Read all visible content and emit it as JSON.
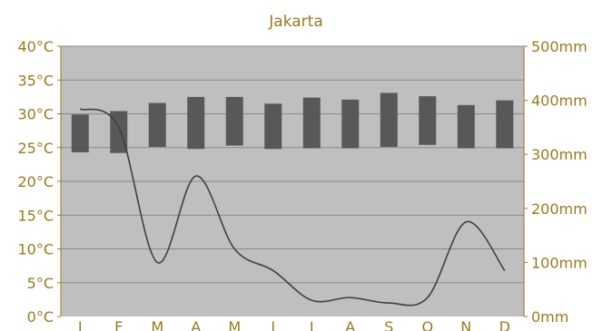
{
  "colors": {
    "text": "#9a7a1d",
    "plot_bg": "#bfbfbf",
    "bars": "#585858",
    "line": "#404040",
    "grid": "#8a8a8a"
  },
  "chart_data": {
    "type": "bar",
    "title": "Jakarta",
    "categories": [
      "J",
      "F",
      "M",
      "A",
      "M",
      "J",
      "J",
      "A",
      "S",
      "O",
      "N",
      "D"
    ],
    "y_left": {
      "range": [
        0,
        40
      ],
      "ticks": [
        "0°C",
        "5°C",
        "10°C",
        "15°C",
        "20°C",
        "25°C",
        "30°C",
        "35°C",
        "40°C"
      ]
    },
    "y_right": {
      "range": [
        0,
        500
      ],
      "ticks": [
        "0mm",
        "100mm",
        "200mm",
        "300mm",
        "400mm",
        "500mm"
      ]
    },
    "grid": true,
    "temperature_ranges": [
      {
        "low": 24.3,
        "high": 29.9
      },
      {
        "low": 24.2,
        "high": 30.4
      },
      {
        "low": 25.1,
        "high": 31.6
      },
      {
        "low": 24.8,
        "high": 32.5
      },
      {
        "low": 25.3,
        "high": 32.5
      },
      {
        "low": 24.8,
        "high": 31.5
      },
      {
        "low": 24.9,
        "high": 32.4
      },
      {
        "low": 24.9,
        "high": 32.1
      },
      {
        "low": 25.1,
        "high": 33.1
      },
      {
        "low": 25.4,
        "high": 32.6
      },
      {
        "low": 24.9,
        "high": 31.3
      },
      {
        "low": 24.9,
        "high": 32.0
      }
    ],
    "precipitation_mm": [
      384,
      350,
      100,
      260,
      125,
      85,
      30,
      35,
      25,
      35,
      175,
      85
    ]
  }
}
